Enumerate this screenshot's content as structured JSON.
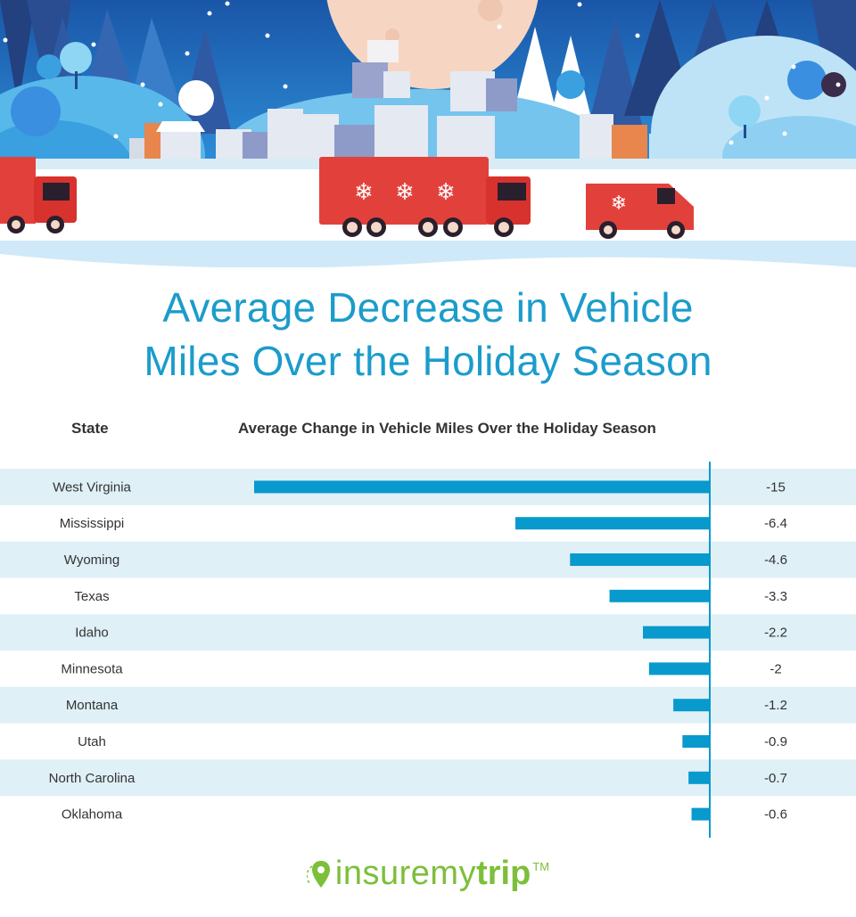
{
  "header": {
    "title_line1": "Average Decrease in Vehicle",
    "title_line2": "Miles Over the Holiday Season",
    "column_state": "State",
    "column_change": "Average Change in Vehicle Miles Over the Holiday Season"
  },
  "illustration": {
    "description": "Winter village scene with red delivery trucks decorated with snowflakes",
    "colors": {
      "sky": "#1e6fc4",
      "moon": "#f6d6c2",
      "truck": "#e2413b",
      "snow": "#ffffff"
    }
  },
  "colors": {
    "title": "#1b9ccb",
    "bar": "#0899cd",
    "row_alt": "#dff0f7",
    "text": "#333333",
    "brand": "#7cbf3a"
  },
  "chart_data": {
    "type": "bar",
    "orientation": "horizontal",
    "title": "Average Decrease in Vehicle Miles Over the Holiday Season",
    "xlabel": "Average Change in Vehicle Miles Over the Holiday Season",
    "ylabel": "State",
    "categories": [
      "West Virginia",
      "Mississippi",
      "Wyoming",
      "Texas",
      "Idaho",
      "Minnesota",
      "Montana",
      "Utah",
      "North Carolina",
      "Oklahoma"
    ],
    "values": [
      -15,
      -6.4,
      -4.6,
      -3.3,
      -2.2,
      -2,
      -1.2,
      -0.9,
      -0.7,
      -0.6
    ],
    "value_labels": [
      "-15",
      "-6.4",
      "-4.6",
      "-3.3",
      "-2.2",
      "-2",
      "-1.2",
      "-0.9",
      "-0.7",
      "-0.6"
    ],
    "xlim": [
      -15,
      0
    ],
    "grid": false,
    "legend": "none"
  },
  "footer": {
    "logo_light": "insuremy",
    "logo_bold": "trip",
    "logo_tm": "TM"
  }
}
